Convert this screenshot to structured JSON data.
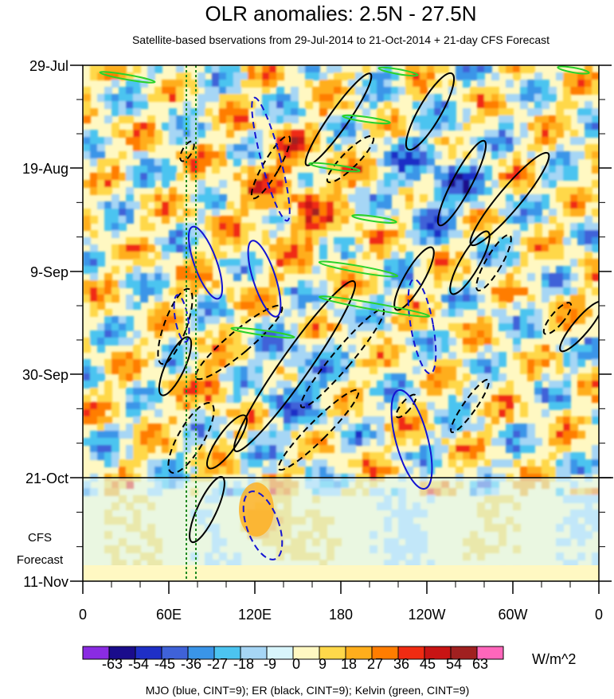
{
  "chart_data": {
    "type": "heatmap",
    "title": "OLR anomalies: 2.5N - 27.5N",
    "subtitle": "Satellite-based bservations from 29-Jul-2014 to 21-Oct-2014 + 21-day CFS Forecast",
    "x_ticks": [
      "0",
      "60E",
      "120E",
      "180",
      "120W",
      "60W",
      "0"
    ],
    "y_ticks": [
      "29-Jul",
      "19-Aug",
      "9-Sep",
      "30-Sep",
      "21-Oct",
      "11-Nov"
    ],
    "forecast_label_line1": "CFS",
    "forecast_label_line2": "Forecast",
    "observation_end": "21-Oct",
    "colorbar": {
      "levels": [
        "-63",
        "-54",
        "-45",
        "-36",
        "-27",
        "-18",
        "-9",
        "0",
        "9",
        "18",
        "27",
        "36",
        "45",
        "54",
        "63"
      ],
      "colors": [
        "#8a2be2",
        "#1a0c8c",
        "#1f2fc6",
        "#3f62d8",
        "#3a95e8",
        "#4cc4f0",
        "#a6d6f5",
        "#d8f5fb",
        "#fff8c2",
        "#ffd84a",
        "#ffae1c",
        "#ff7d00",
        "#f02b12",
        "#c81414",
        "#a02020",
        "#ff66bb"
      ],
      "units": "W/m^2"
    },
    "contour_legend": "MJO (blue, CINT=9); ER (black, CINT=9); Kelvin (green, CINT=9)",
    "series_colors": {
      "MJO": "#1414d2",
      "ER": "#000000",
      "Kelvin": "#2bd22b"
    }
  }
}
